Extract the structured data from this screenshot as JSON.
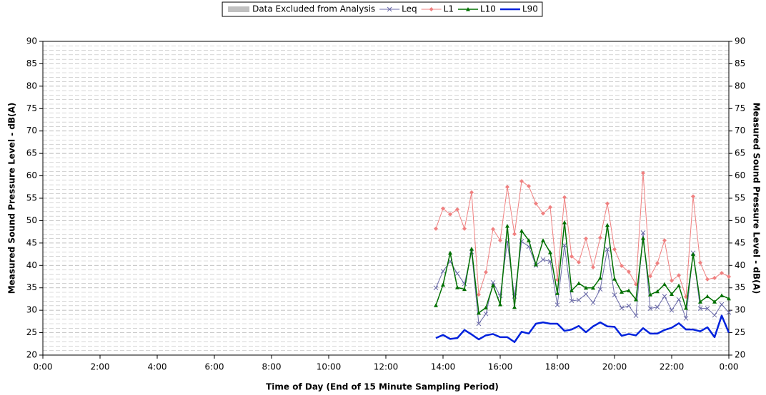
{
  "chart_data": {
    "type": "line",
    "xlabel": "Time of Day (End of 15 Minute Sampling Period)",
    "ylabel": "Measured Sound Pressure Level - dB(A)",
    "y2label": "Measured Sound Pressure Level - dB(A)",
    "excluded_legend": {
      "name": "Data Excluded from Analysis",
      "color": "#c0c0c0"
    },
    "x": [
      13.75,
      14,
      14.25,
      14.5,
      14.75,
      15,
      15.25,
      15.5,
      15.75,
      16,
      16.25,
      16.5,
      16.75,
      17,
      17.25,
      17.5,
      17.75,
      18,
      18.25,
      18.5,
      18.75,
      19,
      19.25,
      19.5,
      19.75,
      20,
      20.25,
      20.5,
      20.75,
      21,
      21.25,
      21.5,
      21.75,
      22,
      22.25,
      22.5,
      22.75,
      23,
      23.25,
      23.5,
      23.75,
      24
    ],
    "xlim": [
      0,
      24
    ],
    "xticks": [
      {
        "value": 0,
        "label": "0:00"
      },
      {
        "value": 2,
        "label": "2:00"
      },
      {
        "value": 4,
        "label": "4:00"
      },
      {
        "value": 6,
        "label": "6:00"
      },
      {
        "value": 8,
        "label": "8:00"
      },
      {
        "value": 10,
        "label": "10:00"
      },
      {
        "value": 12,
        "label": "12:00"
      },
      {
        "value": 14,
        "label": "14:00"
      },
      {
        "value": 16,
        "label": "16:00"
      },
      {
        "value": 18,
        "label": "18:00"
      },
      {
        "value": 20,
        "label": "20:00"
      },
      {
        "value": 22,
        "label": "22:00"
      },
      {
        "value": 24,
        "label": "0:00"
      }
    ],
    "ylim": [
      20,
      90
    ],
    "yticks": [
      20,
      25,
      30,
      35,
      40,
      45,
      50,
      55,
      60,
      65,
      70,
      75,
      80,
      85,
      90
    ],
    "y2lim": [
      20,
      90
    ],
    "y2ticks": [
      20,
      25,
      30,
      35,
      40,
      45,
      50,
      55,
      60,
      65,
      70,
      75,
      80,
      85,
      90
    ],
    "grid": true,
    "legend": "top",
    "series": [
      {
        "name": "Leq",
        "color": "#6a6aa8",
        "marker": "x",
        "linewidth": 1,
        "values": [
          35,
          38.7,
          40.9,
          38.2,
          35.9,
          43,
          27,
          29.2,
          36.2,
          33.2,
          45.3,
          33.1,
          45.4,
          44.2,
          40,
          41.3,
          40.9,
          31.2,
          44.5,
          32.1,
          32.3,
          33.6,
          31.7,
          34.7,
          43.6,
          33.4,
          30.5,
          31,
          28.8,
          47.3,
          30.4,
          30.7,
          33.1,
          30,
          32.4,
          28.2,
          42.8,
          30.4,
          30.4,
          28.9,
          31.3,
          29.5
        ]
      },
      {
        "name": "L1",
        "color": "#f08080",
        "marker": "diamond",
        "linewidth": 1,
        "values": [
          48.2,
          52.7,
          51.4,
          52.5,
          48.2,
          56.3,
          33.5,
          38.5,
          48.1,
          45.6,
          57.5,
          47,
          58.8,
          57.7,
          53.8,
          51.6,
          53,
          36.8,
          55.2,
          42,
          40.7,
          46,
          39.6,
          46.2,
          53.8,
          43.6,
          39.9,
          38.6,
          35.8,
          60.6,
          37.6,
          40.5,
          45.6,
          36.6,
          37.8,
          33,
          55.4,
          40.6,
          36.9,
          37.2,
          38.3,
          37.5
        ]
      },
      {
        "name": "L10",
        "color": "#007000",
        "marker": "triangle",
        "linewidth": 1.5,
        "values": [
          31.1,
          35.7,
          42.8,
          35.1,
          34.7,
          43.7,
          29.4,
          30.6,
          35.6,
          31.3,
          48.8,
          30.7,
          47.7,
          45.6,
          40.2,
          45.6,
          42.9,
          33.8,
          49.6,
          34.4,
          36,
          35,
          35,
          37.2,
          49,
          37,
          34.1,
          34.4,
          32.4,
          46.1,
          33.5,
          34.2,
          35.8,
          33.6,
          35.5,
          30.5,
          42.5,
          31.9,
          33.1,
          31.9,
          33.3,
          32.6
        ]
      },
      {
        "name": "L90",
        "color": "#0022dd",
        "marker": "none",
        "linewidth": 2.5,
        "values": [
          23.8,
          24.5,
          23.6,
          23.8,
          25.6,
          24.6,
          23.5,
          24.4,
          24.7,
          24,
          24,
          22.9,
          25.2,
          24.8,
          27,
          27.3,
          27,
          27,
          25.4,
          25.7,
          26.5,
          25.1,
          26.4,
          27.3,
          26.4,
          26.3,
          24.3,
          24.7,
          24.4,
          26,
          24.8,
          24.8,
          25.6,
          26.1,
          27.1,
          25.7,
          25.7,
          25.3,
          26.2,
          24,
          28.8,
          25
        ]
      }
    ]
  }
}
